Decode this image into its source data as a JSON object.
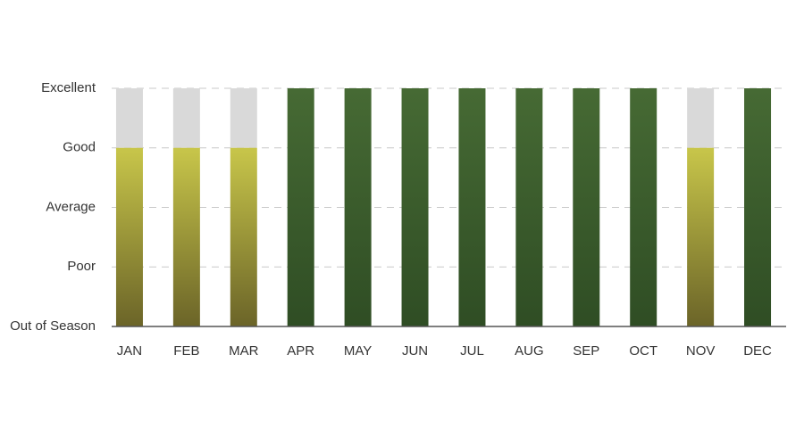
{
  "chart_data": {
    "type": "bar",
    "categories": [
      "JAN",
      "FEB",
      "MAR",
      "APR",
      "MAY",
      "JUN",
      "JUL",
      "AUG",
      "SEP",
      "OCT",
      "NOV",
      "DEC"
    ],
    "values": [
      3,
      3,
      3,
      4,
      4,
      4,
      4,
      4,
      4,
      4,
      3,
      4
    ],
    "gradients": [
      [
        "#c8c64a",
        "#6b6428"
      ],
      [
        "#c8c64a",
        "#6b6428"
      ],
      [
        "#c8c64a",
        "#6b6428"
      ],
      [
        "#466a34",
        "#2f4d24"
      ],
      [
        "#466a34",
        "#2f4d24"
      ],
      [
        "#466a34",
        "#2f4d24"
      ],
      [
        "#466a34",
        "#2f4d24"
      ],
      [
        "#466a34",
        "#2f4d24"
      ],
      [
        "#466a34",
        "#2f4d24"
      ],
      [
        "#466a34",
        "#2f4d24"
      ],
      [
        "#c8c64a",
        "#6b6428"
      ],
      [
        "#466a34",
        "#2f4d24"
      ]
    ],
    "track_color": "#d9d9d9",
    "ylim": [
      0,
      4
    ],
    "yticks": [
      {
        "value": 0,
        "label": "Out of Season"
      },
      {
        "value": 1,
        "label": "Poor"
      },
      {
        "value": 2,
        "label": "Average"
      },
      {
        "value": 3,
        "label": "Good"
      },
      {
        "value": 4,
        "label": "Excellent"
      }
    ],
    "grid": true
  }
}
